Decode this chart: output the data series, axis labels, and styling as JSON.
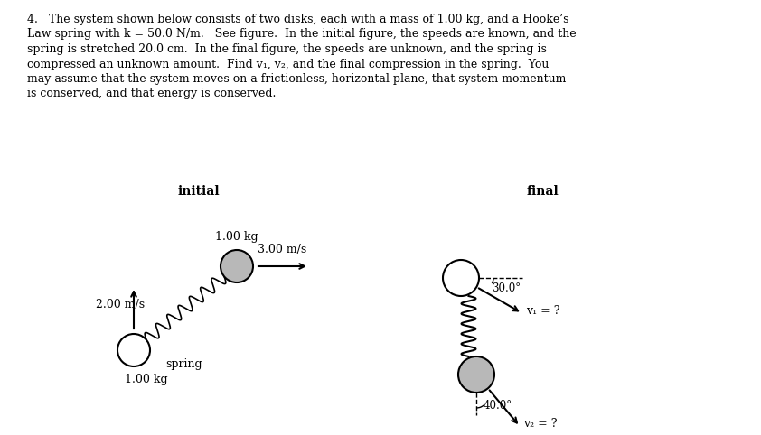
{
  "bg_color": "#ffffff",
  "text_color": "#000000",
  "problem_text_lines": [
    "4.   The system shown below consists of two disks, each with a mass of 1.00 kg, and a Hooke’s",
    "Law spring with k = 50.0 N/m.   See figure.  In the initial figure, the speeds are known, and the",
    "spring is stretched 20.0 cm.  In the final figure, the speeds are unknown, and the spring is",
    "compressed an unknown amount.  Find v₁, v₂, and the final compression in the spring.  You",
    "may assume that the system moves on a frictionless, horizontal plane, that system momentum",
    "is conserved, and that energy is conserved."
  ],
  "initial_label": "initial",
  "final_label": "final",
  "mass_top_label": "1.00 kg",
  "mass_bot_label": "1.00 kg",
  "spring_label": "spring",
  "v_right_label": "3.00 m/s",
  "v_up_label": "2.00 m/s",
  "v1_label": "v₁ = ?",
  "v2_label": "v₂ = ?",
  "angle1_label": "30.0°",
  "angle2_label": "40.0°"
}
